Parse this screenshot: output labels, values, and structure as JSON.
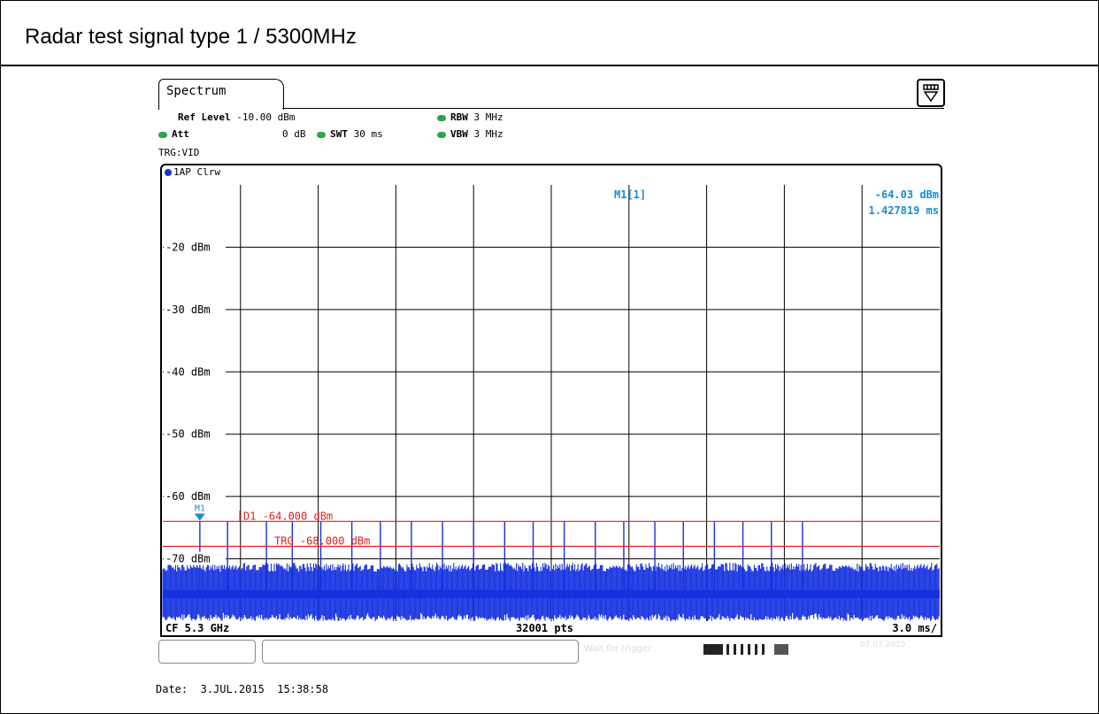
{
  "report_title": "Radar test signal type 1 / 5300MHz",
  "instrument": {
    "tab_label": "Spectrum",
    "menu_icon": "menu-dropdown-icon",
    "settings": {
      "ref_level_label": "Ref Level",
      "ref_level_value": "-10.00 dBm",
      "att_label": "Att",
      "att_value": "0 dB",
      "swt_label": "SWT",
      "swt_value": "30 ms",
      "rbw_label": "RBW",
      "rbw_value": "3 MHz",
      "vbw_label": "VBW",
      "vbw_value": "3 MHz",
      "trigger": "TRG:VID"
    },
    "trace_label": "1AP Clrw",
    "colors": {
      "trace": "#1430e0",
      "marker": "#1a8cd8",
      "limit_lines": "#e02020",
      "indicator": "#2aa84a"
    },
    "marker": {
      "name": "M1[1]",
      "level": "-64.03 dBm",
      "time": "1.427819 ms",
      "symbol": "M1"
    },
    "lines": {
      "d1_label": "D1 -64.000 dBm",
      "trg_label": "TRG -68.000 dBm"
    },
    "footer": {
      "center_freq": "CF 5.3 GHz",
      "points": "32001 pts",
      "time_div": "3.0 ms/"
    },
    "status": {
      "message": "Wait for trigger...",
      "date_stamp": "07.07.2015"
    }
  },
  "date_line": "Date:  3.JUL.2015  15:38:58",
  "chart_data": {
    "type": "line",
    "xlabel": "",
    "ylabel": "",
    "x_unit": "ms",
    "xlim": [
      0,
      30
    ],
    "ylim": [
      -80,
      -10
    ],
    "grid": true,
    "y_ticks": [
      {
        "value": -20,
        "label": "-20 dBm"
      },
      {
        "value": -30,
        "label": "-30 dBm"
      },
      {
        "value": -40,
        "label": "-40 dBm"
      },
      {
        "value": -50,
        "label": "-50 dBm"
      },
      {
        "value": -60,
        "label": "-60 dBm"
      },
      {
        "value": -70,
        "label": "-70 dBm"
      }
    ],
    "horizontal_lines": [
      {
        "name": "D1",
        "value": -64.0
      },
      {
        "name": "TRG",
        "value": -68.0
      }
    ],
    "noise_band": {
      "top": -73,
      "bottom": -80
    },
    "pulses": {
      "x_ms": [
        1.43,
        2.5,
        4.0,
        5.0,
        6.1,
        7.3,
        8.4,
        9.6,
        10.8,
        12.0,
        13.2,
        14.3,
        15.5,
        16.7,
        17.8,
        19.0,
        20.1,
        21.3,
        22.4,
        23.5,
        24.7
      ],
      "peak_dbm": -64.03
    }
  }
}
